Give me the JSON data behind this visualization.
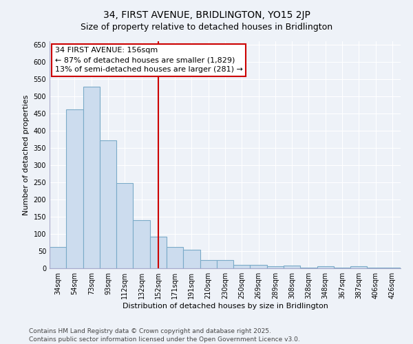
{
  "title": "34, FIRST AVENUE, BRIDLINGTON, YO15 2JP",
  "subtitle": "Size of property relative to detached houses in Bridlington",
  "xlabel": "Distribution of detached houses by size in Bridlington",
  "ylabel": "Number of detached properties",
  "categories": [
    "34sqm",
    "54sqm",
    "73sqm",
    "93sqm",
    "112sqm",
    "132sqm",
    "152sqm",
    "171sqm",
    "191sqm",
    "210sqm",
    "230sqm",
    "250sqm",
    "269sqm",
    "289sqm",
    "308sqm",
    "328sqm",
    "348sqm",
    "367sqm",
    "387sqm",
    "406sqm",
    "426sqm"
  ],
  "values": [
    62,
    463,
    528,
    372,
    249,
    141,
    93,
    62,
    54,
    25,
    25,
    10,
    11,
    6,
    8,
    2,
    7,
    3,
    6,
    3,
    3
  ],
  "bar_color": "#ccdcee",
  "bar_edge_color": "#7aaac8",
  "annotation_line1": "34 FIRST AVENUE: 156sqm",
  "annotation_line2": "← 87% of detached houses are smaller (1,829)",
  "annotation_line3": "13% of semi-detached houses are larger (281) →",
  "annotation_box_color": "#ffffff",
  "annotation_box_edge_color": "#cc0000",
  "highlight_line_color": "#cc0000",
  "highlight_bar_index": 6,
  "ylim": [
    0,
    660
  ],
  "yticks": [
    0,
    50,
    100,
    150,
    200,
    250,
    300,
    350,
    400,
    450,
    500,
    550,
    600,
    650
  ],
  "background_color": "#eef2f8",
  "grid_color": "#ffffff",
  "footer_line1": "Contains HM Land Registry data © Crown copyright and database right 2025.",
  "footer_line2": "Contains public sector information licensed under the Open Government Licence v3.0.",
  "title_fontsize": 10,
  "subtitle_fontsize": 9,
  "xlabel_fontsize": 8,
  "ylabel_fontsize": 8,
  "tick_fontsize": 7,
  "annotation_fontsize": 8,
  "footer_fontsize": 6.5
}
